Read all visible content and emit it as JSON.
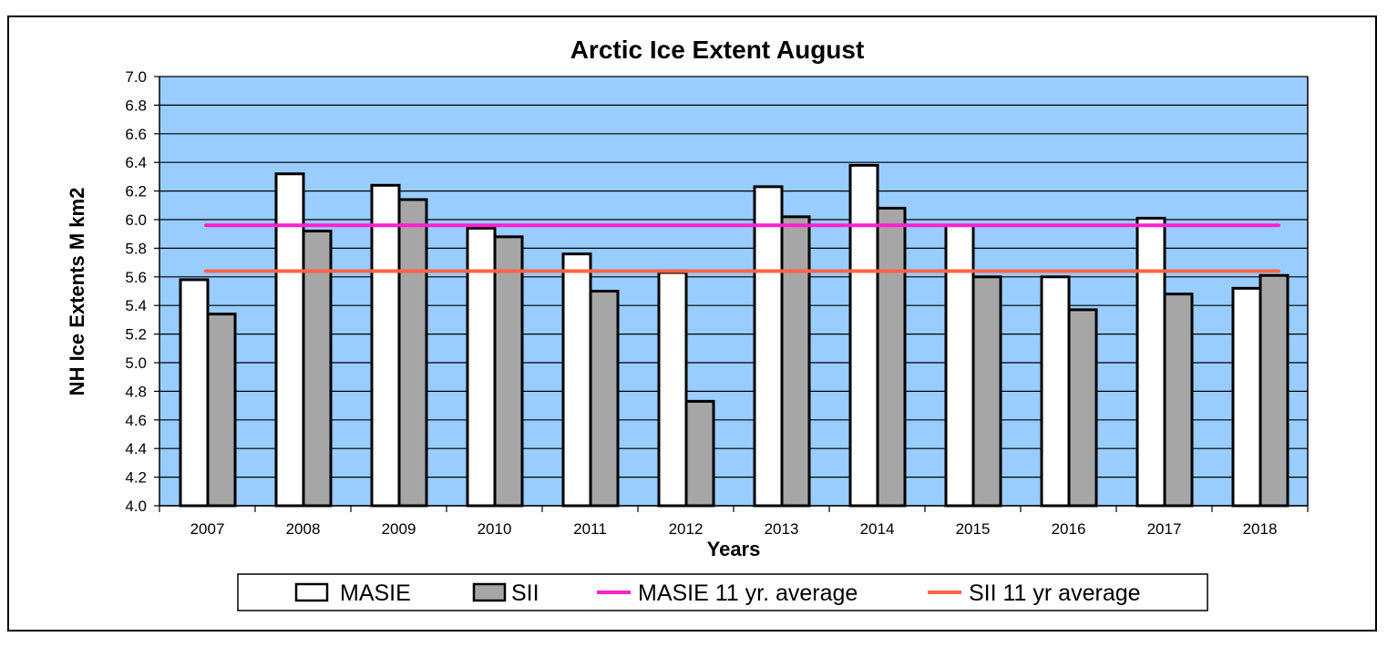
{
  "chart_data": {
    "type": "bar",
    "title": "Arctic Ice Extent August",
    "xlabel": "Years",
    "ylabel": "NH Ice Extents M km2",
    "ylim": [
      4.0,
      7.0
    ],
    "yticks": [
      "4.0",
      "4.2",
      "4.4",
      "4.6",
      "4.8",
      "5.0",
      "5.2",
      "5.4",
      "5.6",
      "5.8",
      "6.0",
      "6.2",
      "6.4",
      "6.6",
      "6.8",
      "7.0"
    ],
    "categories": [
      "2007",
      "2008",
      "2009",
      "2010",
      "2011",
      "2012",
      "2013",
      "2014",
      "2015",
      "2016",
      "2017",
      "2018"
    ],
    "series": [
      {
        "name": "MASIE",
        "kind": "bar",
        "color": "#ffffff",
        "values": [
          5.58,
          6.32,
          6.24,
          5.94,
          5.76,
          5.63,
          6.23,
          6.38,
          5.96,
          5.6,
          6.01,
          5.52
        ]
      },
      {
        "name": "SII",
        "kind": "bar",
        "color": "#a6a6a6",
        "values": [
          5.34,
          5.92,
          6.14,
          5.88,
          5.5,
          4.73,
          6.02,
          6.08,
          5.6,
          5.37,
          5.48,
          5.61
        ]
      },
      {
        "name": "MASIE 11 yr. average",
        "kind": "line",
        "color": "#ff1fd2",
        "value": 5.96
      },
      {
        "name": "SII 11 yr average",
        "kind": "line",
        "color": "#ff6347",
        "value": 5.64
      }
    ],
    "grid": true,
    "legend_position": "bottom",
    "plot_background": "#99ccff"
  }
}
